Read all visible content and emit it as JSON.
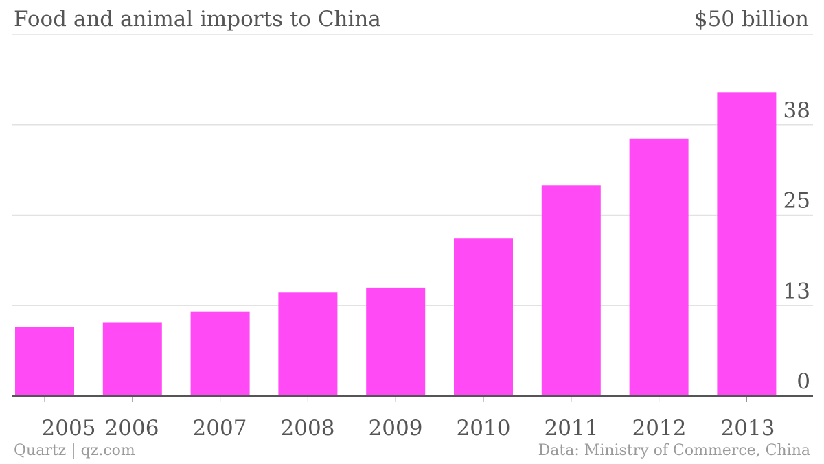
{
  "header": {
    "title": "Food and animal imports to China",
    "unit_label": "$50 billion"
  },
  "footer": {
    "source_left": "Quartz | qz.com",
    "source_right": "Data: Ministry of Commerce, China"
  },
  "colors": {
    "bar": "#ff4af5",
    "grid": "#e2e2e2",
    "axis": "#555555"
  },
  "chart_data": {
    "type": "bar",
    "title": "Food and animal imports to China",
    "xlabel": "",
    "ylabel": "",
    "categories": [
      "2005",
      "2006",
      "2007",
      "2008",
      "2009",
      "2010",
      "2011",
      "2012",
      "2013"
    ],
    "values": [
      9.5,
      10.2,
      11.7,
      14.3,
      15.0,
      21.8,
      29.1,
      35.6,
      42.0
    ],
    "ylim": [
      0,
      50
    ],
    "yticks": [
      0,
      12.5,
      25,
      37.5
    ],
    "ytick_labels": [
      "0",
      "13",
      "25",
      "38"
    ],
    "grid": true,
    "y_axis_side": "right"
  }
}
